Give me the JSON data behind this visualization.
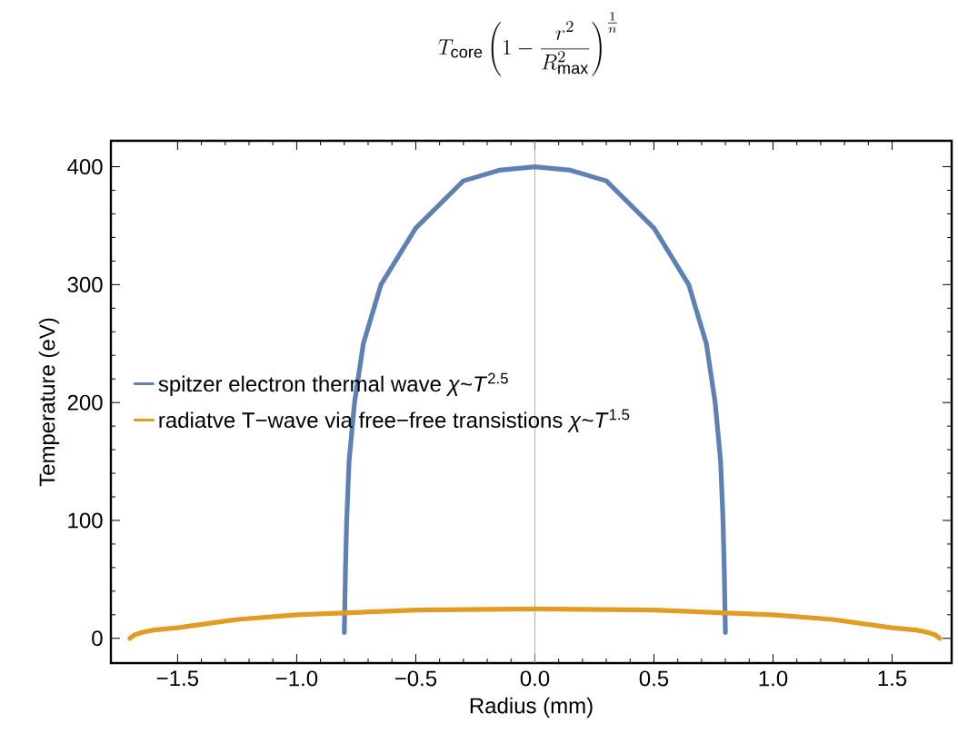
{
  "chart_data": {
    "type": "line",
    "title": "T_{\\mathrm{core}}\\left(1-\\frac{r^{2}}{R_{\\mathrm{max}}^{2}}\\right)^{\\frac{1}{n}}",
    "xlabel": "Radius (mm)",
    "ylabel": "Temperature (eV)",
    "series": [
      {
        "name": "spitzer electron thermal wave *χ*~*T*$^{2.5}$",
        "color": "#5e81b5",
        "x": [
          -0.8,
          -0.795,
          -0.79,
          -0.78,
          -0.757,
          -0.72,
          -0.646,
          -0.5,
          -0.3,
          -0.15,
          0,
          0.15,
          0.3,
          0.5,
          0.646,
          0.72,
          0.757,
          0.78,
          0.79,
          0.795,
          0.8
        ],
        "values": [
          5,
          60,
          100,
          150,
          200,
          250,
          300,
          348,
          388,
          397,
          400,
          397,
          388,
          348,
          300,
          250,
          200,
          150,
          100,
          60,
          5
        ]
      },
      {
        "name": "radiatve T−wave via free−free transistions *χ*~*T*$^{1.5}$",
        "color": "#e19c24",
        "x": [
          -1.7,
          -1.68,
          -1.65,
          -1.6,
          -1.5,
          -1.25,
          -1.0,
          -0.5,
          0,
          0.5,
          1.0,
          1.25,
          1.5,
          1.6,
          1.65,
          1.68,
          1.7
        ],
        "values": [
          0,
          3,
          5,
          7,
          9,
          16,
          20,
          24,
          25,
          24,
          20,
          16,
          9,
          7,
          5,
          3,
          0
        ]
      }
    ],
    "xlim": [
      -1.78,
      1.75
    ],
    "ylim": [
      -21,
      422
    ],
    "xticks": [
      {
        "value": -1.5,
        "label": "−1.5"
      },
      {
        "value": -1.0,
        "label": "−1.0"
      },
      {
        "value": -0.5,
        "label": "−0.5"
      },
      {
        "value": 0,
        "label": "0.0"
      },
      {
        "value": 0.5,
        "label": "0.5"
      },
      {
        "value": 1.0,
        "label": "1.0"
      },
      {
        "value": 1.5,
        "label": "1.5"
      }
    ],
    "yticks": [
      0,
      100,
      200,
      300,
      400
    ],
    "ref_lines": [
      {
        "axis": "x",
        "value": 0,
        "color": "#999999"
      }
    ],
    "legend": "left",
    "grid": false,
    "marker": "none",
    "line_style": "solid"
  }
}
